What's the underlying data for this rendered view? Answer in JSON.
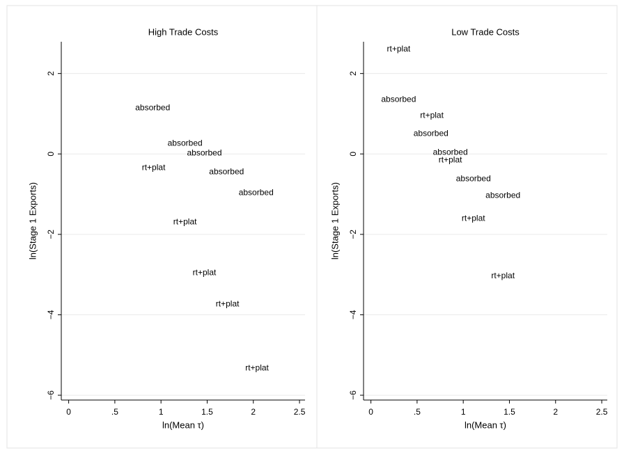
{
  "chart_data": [
    {
      "type": "scatter",
      "title": "High Trade Costs",
      "x_label": "ln(Mean τ)",
      "y_label": "ln(Stage 1 Exports)",
      "x": [
        0.91,
        1.26,
        1.47,
        0.92,
        1.71,
        2.03,
        1.26,
        1.47,
        1.72,
        2.04
      ],
      "values": [
        1.14,
        0.26,
        0.02,
        -0.35,
        -0.45,
        -0.97,
        -1.7,
        -2.96,
        -3.74,
        -5.33
      ],
      "labels": [
        "absorbed",
        "absorbed",
        "absorbed",
        "rt+plat",
        "absorbed",
        "absorbed",
        "rt+plat",
        "rt+plat",
        "rt+plat",
        "rt+plat"
      ],
      "xlim": [
        -0.08,
        2.56
      ],
      "ylim": [
        -6.12,
        2.79
      ],
      "xticks": [
        0,
        {
          "value": 0.5,
          "label": ".5"
        },
        1,
        1.5,
        2,
        2.5
      ],
      "yticks": [
        {
          "value": -6,
          "label": "−6"
        },
        {
          "value": -4,
          "label": "−4"
        },
        {
          "value": -2,
          "label": "−2"
        },
        0,
        2
      ],
      "grid": true
    },
    {
      "type": "scatter",
      "title": "Low Trade Costs",
      "x_label": "ln(Mean τ)",
      "y_label": "ln(Stage 1 Exports)",
      "x": [
        0.3,
        0.3,
        0.66,
        0.65,
        0.86,
        0.86,
        1.11,
        1.43,
        1.11,
        1.43
      ],
      "values": [
        2.6,
        1.35,
        0.95,
        0.5,
        0.03,
        -0.16,
        -0.62,
        -1.04,
        -1.61,
        -3.04
      ],
      "labels": [
        "rt+plat",
        "absorbed",
        "rt+plat",
        "absorbed",
        "absorbed",
        "rt+plat",
        "absorbed",
        "absorbed",
        "rt+plat",
        "rt+plat"
      ],
      "xlim": [
        -0.08,
        2.56
      ],
      "ylim": [
        -6.12,
        2.79
      ],
      "xticks": [
        0,
        {
          "value": 0.5,
          "label": ".5"
        },
        1,
        1.5,
        2,
        2.5
      ],
      "yticks": [
        {
          "value": -6,
          "label": "−6"
        },
        {
          "value": -4,
          "label": "−4"
        },
        {
          "value": -2,
          "label": "−2"
        },
        0,
        2
      ],
      "grid": true
    }
  ]
}
